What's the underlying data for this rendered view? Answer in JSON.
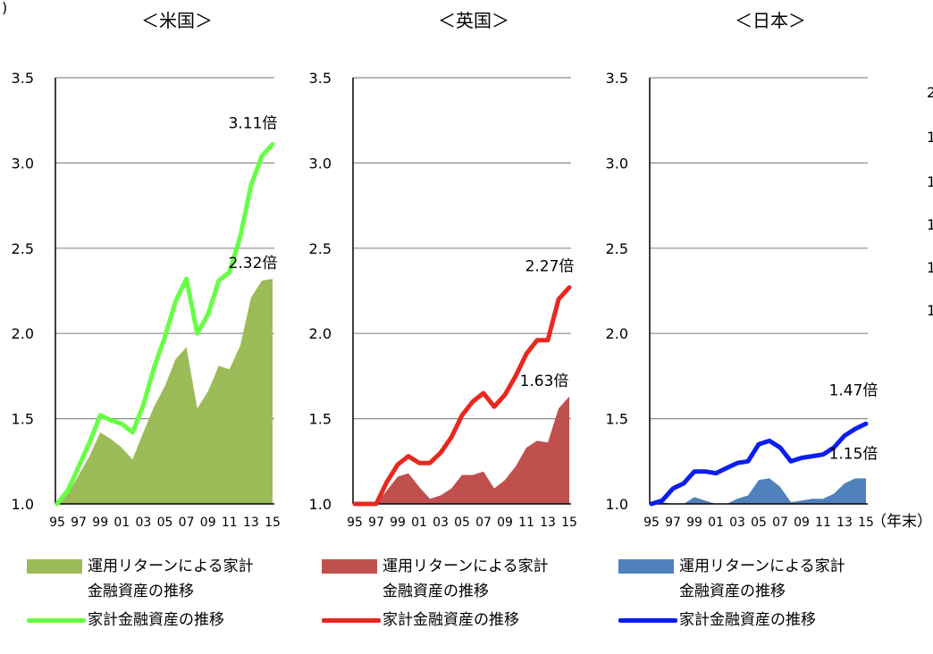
{
  "page": {
    "stray_mark": ")",
    "unit_label": "（年末）",
    "right_edge_labels": [
      "2",
      "1",
      "1",
      "1",
      "1",
      "1"
    ]
  },
  "chart_data": [
    {
      "type": "area",
      "title": "＜米国＞",
      "categories": [
        "95",
        "96",
        "97",
        "98",
        "99",
        "00",
        "01",
        "02",
        "03",
        "04",
        "05",
        "06",
        "07",
        "08",
        "09",
        "10",
        "11",
        "12",
        "13",
        "14",
        "15"
      ],
      "tick_labels": [
        "95",
        "97",
        "99",
        "01",
        "03",
        "05",
        "07",
        "09",
        "11",
        "13",
        "15"
      ],
      "ylim": [
        1.0,
        3.5
      ],
      "y_ticks": [
        "1.0",
        "1.5",
        "2.0",
        "2.5",
        "3.0",
        "3.5"
      ],
      "grid": true,
      "colors": {
        "area": "#9bbb59",
        "line": "#66ff44"
      },
      "series": [
        {
          "name": "運用リターンによる家計金融資産の推移",
          "kind": "area",
          "values": [
            1.0,
            1.06,
            1.17,
            1.28,
            1.42,
            1.38,
            1.33,
            1.26,
            1.42,
            1.57,
            1.69,
            1.85,
            1.92,
            1.56,
            1.66,
            1.81,
            1.79,
            1.93,
            2.21,
            2.31,
            2.32
          ]
        },
        {
          "name": "家計金融資産の推移",
          "kind": "line",
          "values": [
            1.0,
            1.08,
            1.22,
            1.36,
            1.52,
            1.49,
            1.47,
            1.42,
            1.58,
            1.8,
            1.98,
            2.19,
            2.32,
            2.0,
            2.11,
            2.31,
            2.36,
            2.57,
            2.87,
            3.04,
            3.11
          ]
        }
      ],
      "annotations": [
        {
          "text": "3.11倍",
          "x": "15",
          "y": 3.11
        },
        {
          "text": "2.32倍",
          "x": "15",
          "y": 2.32
        }
      ]
    },
    {
      "type": "area",
      "title": "＜英国＞",
      "categories": [
        "95",
        "96",
        "97",
        "98",
        "99",
        "00",
        "01",
        "02",
        "03",
        "04",
        "05",
        "06",
        "07",
        "08",
        "09",
        "10",
        "11",
        "12",
        "13",
        "14",
        "15"
      ],
      "tick_labels": [
        "95",
        "97",
        "99",
        "01",
        "03",
        "05",
        "07",
        "09",
        "11",
        "13",
        "15"
      ],
      "ylim": [
        1.0,
        3.5
      ],
      "y_ticks": [
        "1.0",
        "1.5",
        "2.0",
        "2.5",
        "3.0",
        "3.5"
      ],
      "grid": true,
      "colors": {
        "area": "#c0504d",
        "line": "#e8281e"
      },
      "series": [
        {
          "name": "運用リターンによる家計金融資産の推移",
          "kind": "area",
          "values": [
            1.0,
            1.0,
            1.0,
            1.08,
            1.16,
            1.18,
            1.1,
            1.03,
            1.05,
            1.09,
            1.17,
            1.17,
            1.19,
            1.09,
            1.14,
            1.22,
            1.33,
            1.37,
            1.36,
            1.56,
            1.63
          ]
        },
        {
          "name": "家計金融資産の推移",
          "kind": "line",
          "values": [
            1.0,
            1.0,
            1.0,
            1.13,
            1.23,
            1.28,
            1.24,
            1.24,
            1.3,
            1.39,
            1.52,
            1.6,
            1.65,
            1.57,
            1.64,
            1.75,
            1.88,
            1.96,
            1.96,
            2.2,
            2.27
          ]
        }
      ],
      "annotations": [
        {
          "text": "2.27倍",
          "x": "15",
          "y": 2.27
        },
        {
          "text": "1.63倍",
          "x": "15",
          "y": 1.63
        }
      ]
    },
    {
      "type": "area",
      "title": "＜日本＞",
      "categories": [
        "95",
        "96",
        "97",
        "98",
        "99",
        "00",
        "01",
        "02",
        "03",
        "04",
        "05",
        "06",
        "07",
        "08",
        "09",
        "10",
        "11",
        "12",
        "13",
        "14",
        "15"
      ],
      "tick_labels": [
        "95",
        "97",
        "99",
        "01",
        "03",
        "05",
        "07",
        "09",
        "11",
        "13",
        "15"
      ],
      "ylim": [
        1.0,
        3.5
      ],
      "y_ticks": [
        "1.0",
        "1.5",
        "2.0",
        "2.5",
        "3.0",
        "3.5"
      ],
      "grid": true,
      "colors": {
        "area": "#4f81bd",
        "line": "#0a1ef0"
      },
      "series": [
        {
          "name": "運用リターンによる家計金融資産の推移",
          "kind": "area",
          "values": [
            1.0,
            1.01,
            1.0,
            1.0,
            1.04,
            1.02,
            1.0,
            1.0,
            1.03,
            1.05,
            1.14,
            1.15,
            1.1,
            1.01,
            1.02,
            1.03,
            1.03,
            1.06,
            1.12,
            1.15,
            1.15
          ]
        },
        {
          "name": "家計金融資産の推移",
          "kind": "line",
          "values": [
            1.0,
            1.02,
            1.09,
            1.12,
            1.19,
            1.19,
            1.18,
            1.21,
            1.24,
            1.25,
            1.35,
            1.37,
            1.33,
            1.25,
            1.27,
            1.28,
            1.29,
            1.33,
            1.4,
            1.44,
            1.47
          ]
        }
      ],
      "annotations": [
        {
          "text": "1.47倍",
          "x": "15",
          "y": 1.47
        },
        {
          "text": "1.15倍",
          "x": "15",
          "y": 1.15
        }
      ]
    }
  ],
  "legends": [
    {
      "area_label_line1": "運用リターンによる家計",
      "area_label_line2": "金融資産の推移",
      "line_label": "家計金融資産の推移"
    },
    {
      "area_label_line1": "運用リターンによる家計",
      "area_label_line2": "金融資産の推移",
      "line_label": "家計金融資産の推移"
    },
    {
      "area_label_line1": "運用リターンによる家計",
      "area_label_line2": "金融資産の推移",
      "line_label": "家計金融資産の推移"
    }
  ]
}
